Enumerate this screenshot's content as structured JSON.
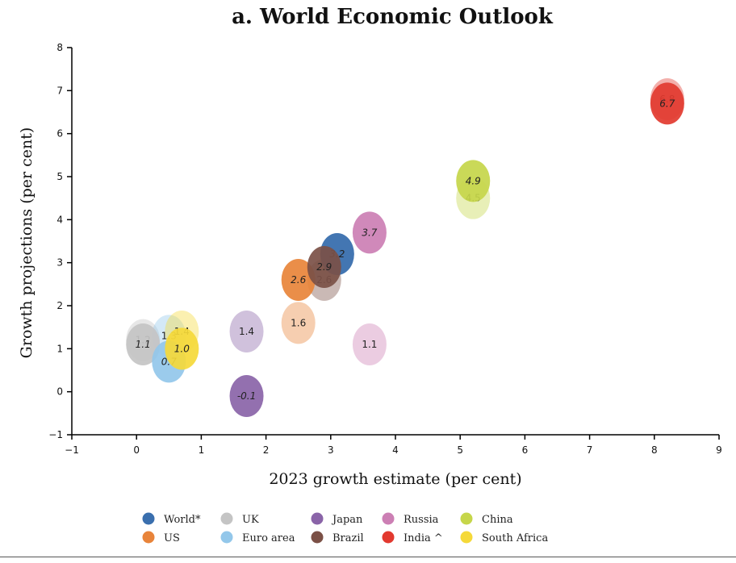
{
  "chart_data": {
    "type": "scatter",
    "title": "a. World Economic Outlook",
    "xlabel": "2023 growth estimate (per cent)",
    "ylabel": "Growth projections (per cent)",
    "xlim": [
      -1,
      9
    ],
    "ylim": [
      -1,
      8
    ],
    "xticks": [
      "−1",
      "0",
      "1",
      "2",
      "3",
      "4",
      "5",
      "6",
      "7",
      "8",
      "9"
    ],
    "yticks": [
      "−1",
      "0",
      "1",
      "2",
      "3",
      "4",
      "5",
      "6",
      "7",
      "8"
    ],
    "grid": false,
    "legend_position": "bottom",
    "legend_layout": "rows",
    "series": [
      {
        "name": "World*",
        "color": "#3a6fae",
        "points": [
          {
            "x": 3.1,
            "y": 3.2,
            "label": "3.2",
            "strength": "light"
          },
          {
            "x": 3.1,
            "y": 3.2,
            "label": "3.2",
            "strength": "full"
          }
        ]
      },
      {
        "name": "US",
        "color": "#e8843a",
        "points": [
          {
            "x": 2.5,
            "y": 1.6,
            "label": "1.6",
            "strength": "light"
          },
          {
            "x": 2.5,
            "y": 2.6,
            "label": "2.6",
            "strength": "full"
          }
        ]
      },
      {
        "name": "UK",
        "color": "#c4c4c4",
        "points": [
          {
            "x": 0.1,
            "y": 1.2,
            "label": "1.2",
            "strength": "light"
          },
          {
            "x": 0.1,
            "y": 1.1,
            "label": "1.1",
            "strength": "full"
          }
        ]
      },
      {
        "name": "Euro area",
        "color": "#93c7ea",
        "points": [
          {
            "x": 0.5,
            "y": 1.3,
            "label": "1.3",
            "strength": "light"
          },
          {
            "x": 0.5,
            "y": 0.7,
            "label": "0.7",
            "strength": "full"
          }
        ]
      },
      {
        "name": "Japan",
        "color": "#8a64a8",
        "points": [
          {
            "x": 1.7,
            "y": 1.4,
            "label": "1.4",
            "strength": "light"
          },
          {
            "x": 1.7,
            "y": -0.1,
            "label": "-0.1",
            "strength": "full"
          }
        ]
      },
      {
        "name": "Brazil",
        "color": "#7b5046",
        "points": [
          {
            "x": 2.9,
            "y": 2.6,
            "label": "2.6",
            "strength": "light"
          },
          {
            "x": 2.9,
            "y": 2.9,
            "label": "2.9",
            "strength": "full"
          }
        ]
      },
      {
        "name": "Russia",
        "color": "#cc7fb4",
        "points": [
          {
            "x": 3.6,
            "y": 1.1,
            "label": "1.1",
            "strength": "light"
          },
          {
            "x": 3.6,
            "y": 3.7,
            "label": "3.7",
            "strength": "full"
          }
        ]
      },
      {
        "name": "India ^",
        "color": "#e2392f",
        "points": [
          {
            "x": 8.2,
            "y": 6.8,
            "label": "6.8",
            "strength": "light"
          },
          {
            "x": 8.2,
            "y": 6.7,
            "label": "6.7",
            "strength": "full"
          }
        ]
      },
      {
        "name": "China",
        "color": "#c6d64a",
        "points": [
          {
            "x": 5.2,
            "y": 4.5,
            "label": "4.5",
            "strength": "light"
          },
          {
            "x": 5.2,
            "y": 4.9,
            "label": "4.9",
            "strength": "full"
          }
        ]
      },
      {
        "name": "South Africa",
        "color": "#f5d939",
        "points": [
          {
            "x": 0.7,
            "y": 1.4,
            "label": "1.4",
            "strength": "light"
          },
          {
            "x": 0.7,
            "y": 1.0,
            "label": "1.0",
            "strength": "full"
          }
        ]
      }
    ]
  }
}
